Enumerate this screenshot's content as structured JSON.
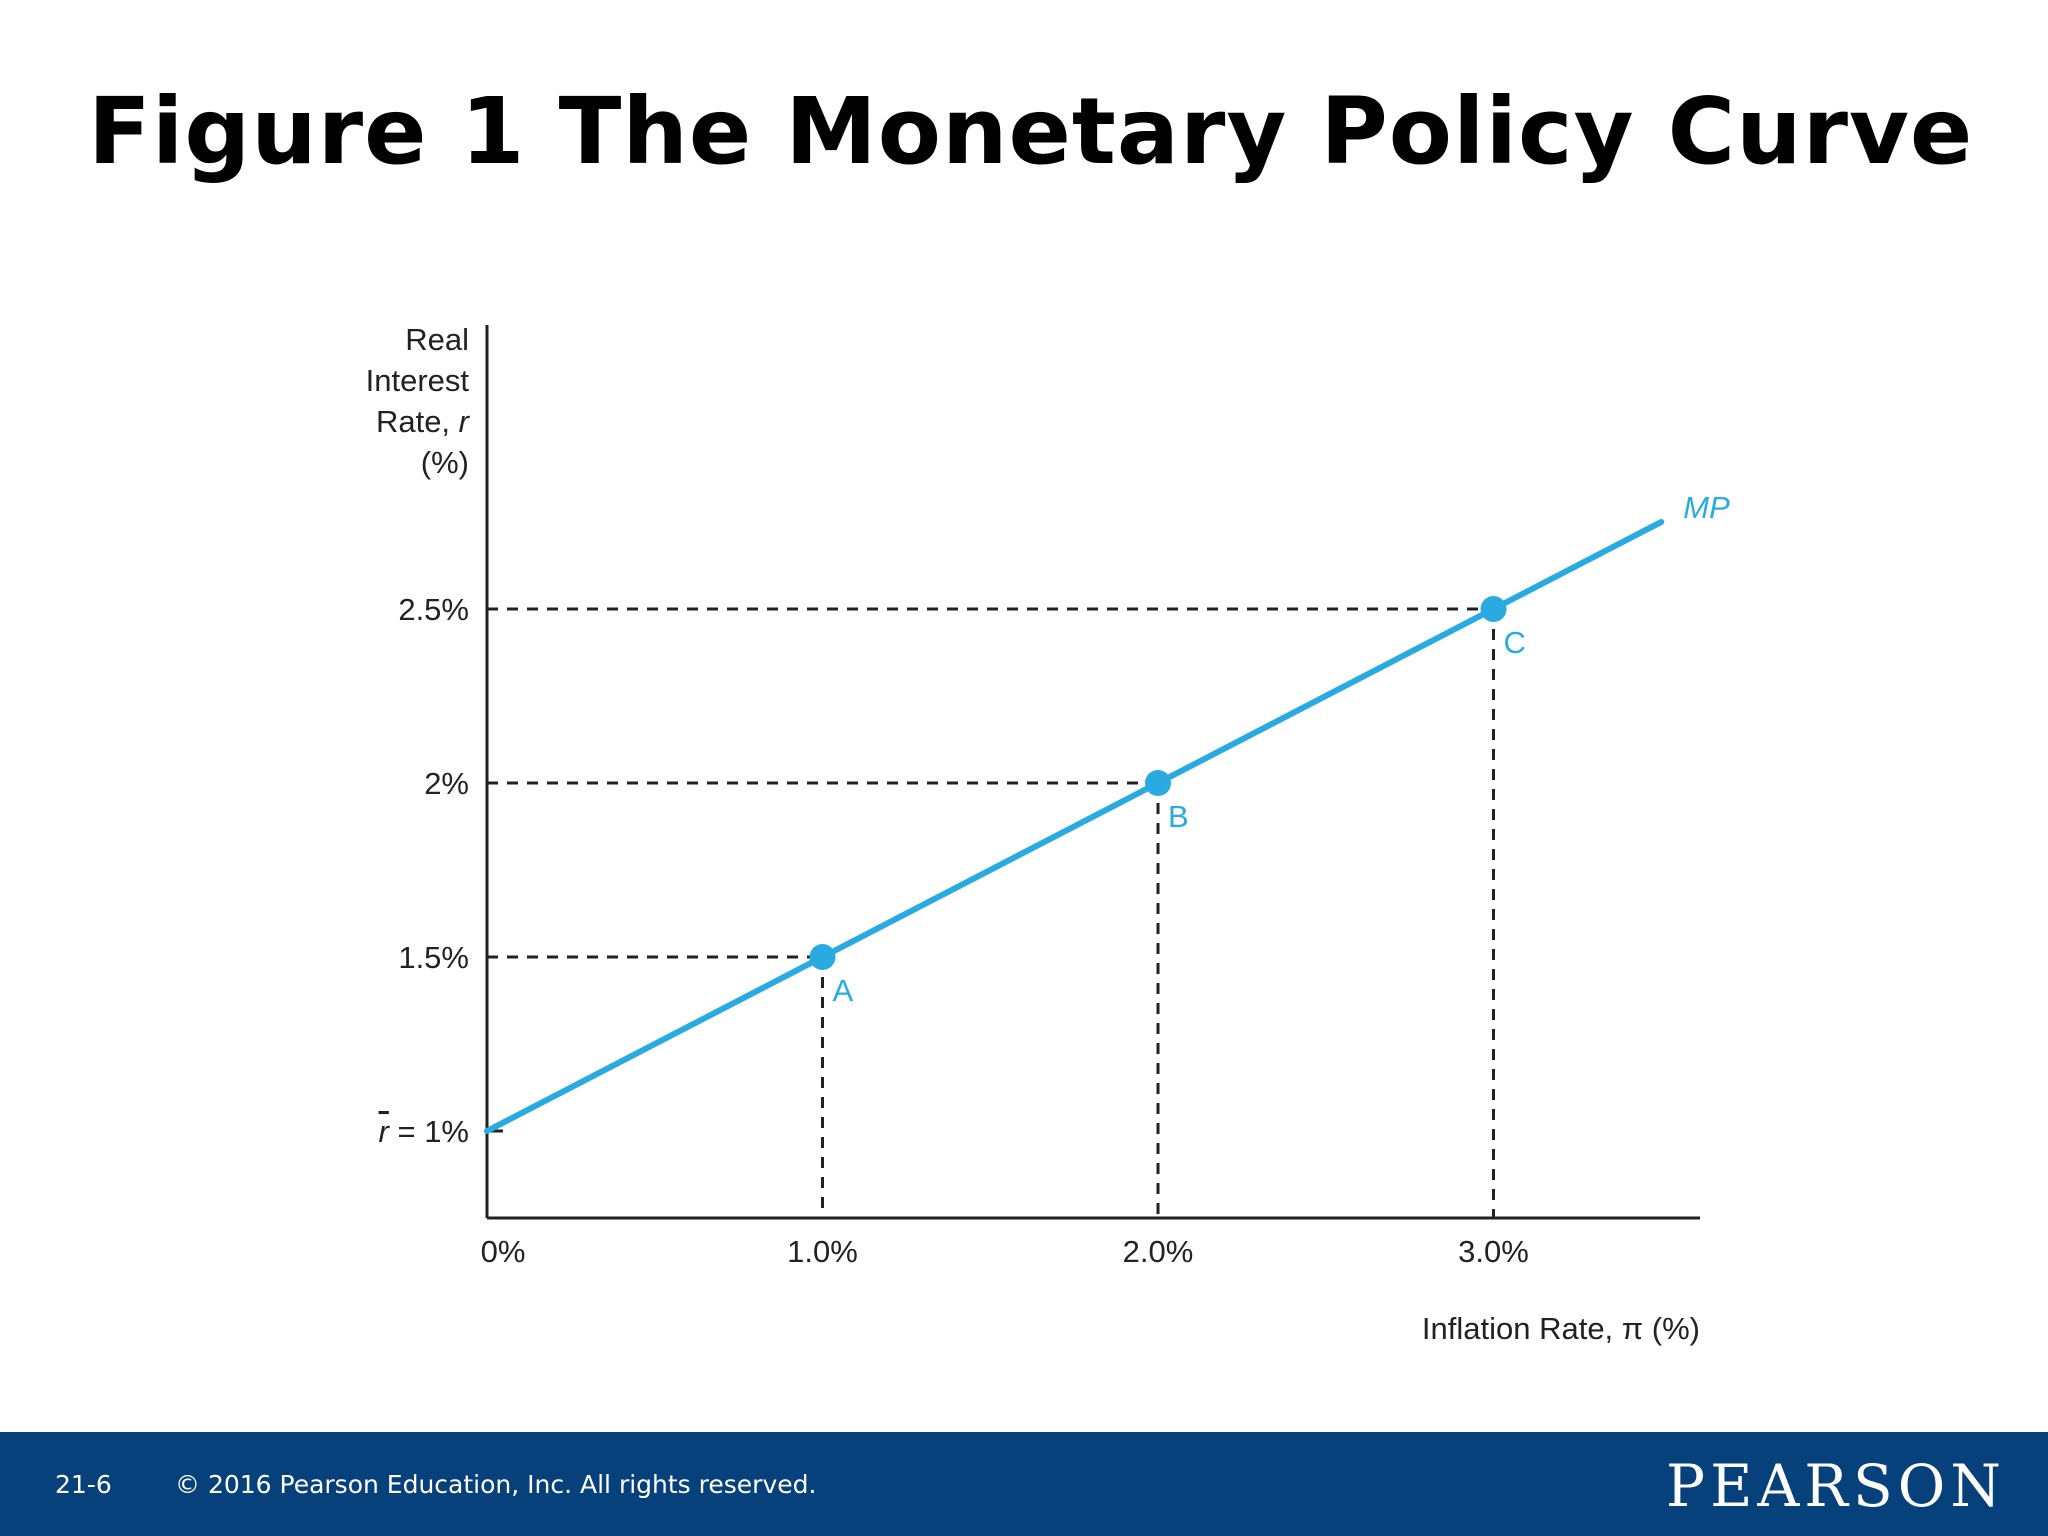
{
  "slide": {
    "title": "Figure 1 The Monetary Policy Curve"
  },
  "footer": {
    "slide_number": "21-6",
    "copyright": "© 2016 Pearson Education, Inc. All rights reserved.",
    "logo": "PEARSON"
  },
  "colors": {
    "curve": "#29abe2",
    "axis": "#222222",
    "footer_bg": "#07417b"
  },
  "chart_data": {
    "type": "line",
    "xlabel": "Inflation Rate, π (%)",
    "ylabel_lines": [
      "Real",
      "Interest",
      "Rate, r",
      "(%)"
    ],
    "xlim": [
      0,
      3.6
    ],
    "ylim": [
      0.75,
      3.3
    ],
    "x_ticks": [
      {
        "value": 0,
        "label": "0%"
      },
      {
        "value": 1,
        "label": "1.0%"
      },
      {
        "value": 2,
        "label": "2.0%"
      },
      {
        "value": 3,
        "label": "3.0%"
      }
    ],
    "y_ticks": [
      {
        "value": 1,
        "label_bar": "r",
        "label": " = 1%"
      },
      {
        "value": 1.5,
        "label": "1.5%"
      },
      {
        "value": 2,
        "label": "2%"
      },
      {
        "value": 2.5,
        "label": "2.5%"
      }
    ],
    "series": [
      {
        "name": "MP",
        "line": [
          [
            0,
            1
          ],
          [
            3.5,
            2.75
          ]
        ],
        "points": [
          {
            "label": "A",
            "x": 1,
            "y": 1.5
          },
          {
            "label": "B",
            "x": 2,
            "y": 2
          },
          {
            "label": "C",
            "x": 3,
            "y": 2.5
          }
        ]
      }
    ],
    "grid": false,
    "legend": "none"
  }
}
